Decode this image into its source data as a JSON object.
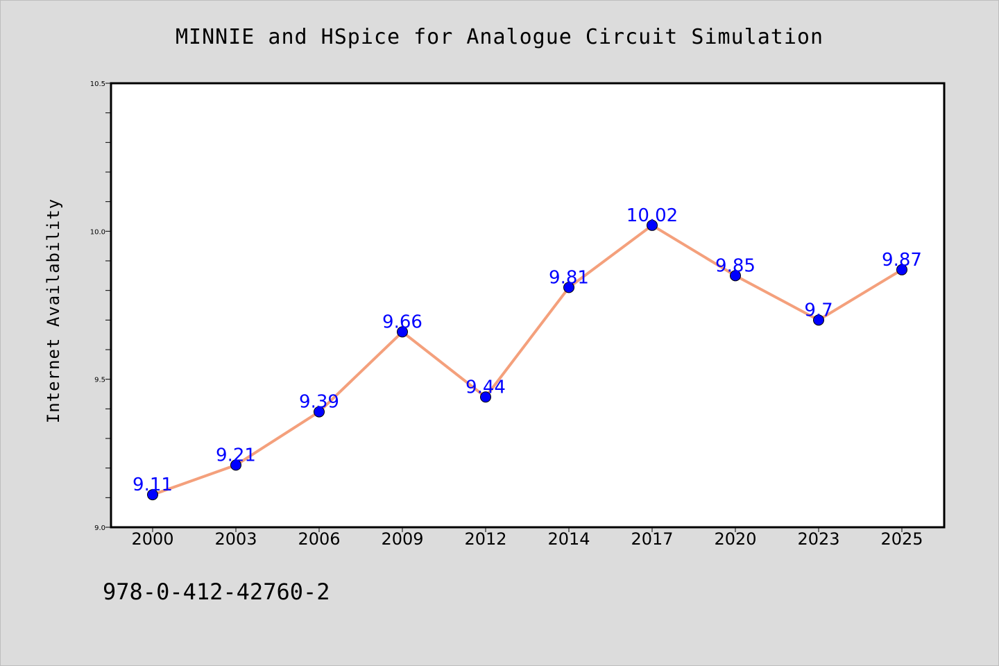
{
  "chart_data": {
    "type": "line",
    "title": "MINNIE and HSpice for Analogue Circuit Simulation",
    "xlabel": "",
    "ylabel": "Internet Availability",
    "categories": [
      "2000",
      "2003",
      "2006",
      "2009",
      "2012",
      "2014",
      "2017",
      "2020",
      "2023",
      "2025"
    ],
    "values": [
      9.11,
      9.21,
      9.39,
      9.66,
      9.44,
      9.81,
      10.02,
      9.85,
      9.7,
      9.87
    ],
    "data_labels": [
      "9.11",
      "9.21",
      "9.39",
      "9.66",
      "9.44",
      "9.81",
      "10.02",
      "9.85",
      "9.7",
      "9.87"
    ],
    "ylim": [
      9.0,
      10.5
    ],
    "y_ticks": [
      "9.0",
      "9.5",
      "10.0",
      "10.5"
    ],
    "y_tick_values": [
      9.0,
      9.5,
      10.0,
      10.5
    ],
    "y_minor_step": 0.1,
    "grid": false,
    "line_color": "#f4a07c",
    "marker_color": "#0000ff",
    "label_color": "#0000ff"
  },
  "footer": {
    "isbn": "978-0-412-42760-2"
  },
  "colors": {
    "background": "#dcdcdc",
    "plot_background": "#ffffff"
  }
}
